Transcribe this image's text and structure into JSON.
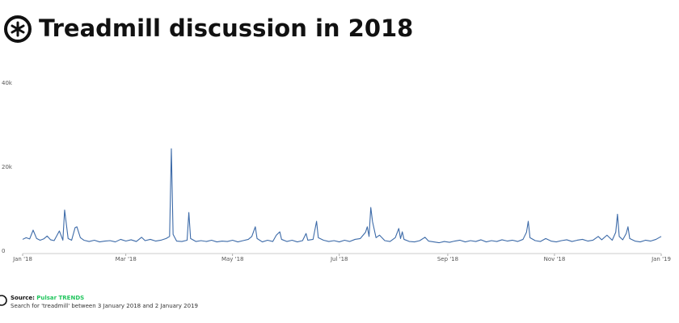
{
  "chart_data": {
    "type": "line",
    "title": "Treadmill discussion in 2018",
    "source_label": "Source:",
    "source_name": "Pulsar TRENDS",
    "note": "Search for 'treadmill' between 3 January 2018 and 2 January 2019",
    "color": "#3c6aa8",
    "x": [
      0,
      2,
      4,
      6,
      8,
      10,
      12,
      14,
      16,
      18,
      21,
      23,
      24,
      26,
      28,
      30,
      31,
      33,
      35,
      38,
      41,
      44,
      47,
      50,
      53,
      56,
      59,
      62,
      65,
      68,
      70,
      73,
      76,
      79,
      82,
      84,
      85,
      86,
      88,
      91,
      94,
      95,
      96,
      99,
      102,
      105,
      108,
      111,
      114,
      117,
      120,
      123,
      126,
      129,
      131,
      133,
      134,
      137,
      140,
      143,
      145,
      147,
      148,
      151,
      154,
      157,
      160,
      162,
      163,
      166,
      168,
      169,
      172,
      175,
      178,
      181,
      184,
      187,
      190,
      193,
      196,
      197,
      198,
      199,
      200,
      202,
      204,
      207,
      210,
      213,
      215,
      216,
      217,
      218,
      221,
      224,
      227,
      230,
      232,
      235,
      238,
      241,
      244,
      247,
      250,
      253,
      256,
      259,
      262,
      265,
      268,
      271,
      274,
      277,
      280,
      283,
      286,
      288,
      289,
      290,
      293,
      296,
      299,
      302,
      305,
      308,
      311,
      314,
      317,
      320,
      323,
      326,
      329,
      331,
      334,
      337,
      339,
      340,
      341,
      343,
      345,
      346,
      347,
      350,
      353,
      356,
      359,
      362,
      365
    ],
    "values": [
      2800,
      3200,
      2900,
      5000,
      3000,
      2600,
      2900,
      3600,
      2700,
      2500,
      4800,
      2600,
      9800,
      3000,
      2600,
      5600,
      5800,
      3200,
      2600,
      2300,
      2600,
      2200,
      2400,
      2500,
      2200,
      2800,
      2400,
      2700,
      2300,
      3300,
      2500,
      2800,
      2400,
      2600,
      3000,
      3500,
      24400,
      4000,
      2400,
      2300,
      2600,
      9200,
      3000,
      2300,
      2500,
      2300,
      2600,
      2200,
      2400,
      2300,
      2600,
      2200,
      2500,
      2800,
      3500,
      5800,
      3000,
      2200,
      2600,
      2300,
      3800,
      4600,
      2800,
      2300,
      2600,
      2200,
      2500,
      4200,
      2600,
      2800,
      7100,
      3200,
      2600,
      2300,
      2500,
      2200,
      2600,
      2300,
      2800,
      3000,
      4500,
      5800,
      3500,
      10400,
      7000,
      3200,
      3800,
      2500,
      2300,
      3200,
      5400,
      3000,
      4600,
      2800,
      2300,
      2200,
      2500,
      3300,
      2400,
      2200,
      2000,
      2300,
      2100,
      2400,
      2600,
      2200,
      2500,
      2300,
      2700,
      2200,
      2500,
      2300,
      2700,
      2400,
      2600,
      2300,
      2800,
      4500,
      7100,
      3200,
      2500,
      2300,
      3000,
      2400,
      2200,
      2500,
      2700,
      2300,
      2600,
      2800,
      2400,
      2600,
      3500,
      2700,
      3800,
      2600,
      4500,
      8800,
      3500,
      2700,
      4200,
      5800,
      3000,
      2400,
      2200,
      2600,
      2400,
      2800,
      3500
    ],
    "xlim": [
      0,
      365
    ],
    "xticks": [
      {
        "value": 0,
        "label": "Jan '18"
      },
      {
        "value": 59,
        "label": "Mar '18"
      },
      {
        "value": 120,
        "label": "May '18"
      },
      {
        "value": 181,
        "label": "Jul '18"
      },
      {
        "value": 243,
        "label": "Sep '18"
      },
      {
        "value": 304,
        "label": "Nov '18"
      },
      {
        "value": 365,
        "label": "Jan '19"
      }
    ],
    "ylim": [
      0,
      40000
    ],
    "yticks": [
      0,
      {
        "value": 20000,
        "label": "20k"
      },
      {
        "value": 40000,
        "label": "40k"
      }
    ]
  }
}
